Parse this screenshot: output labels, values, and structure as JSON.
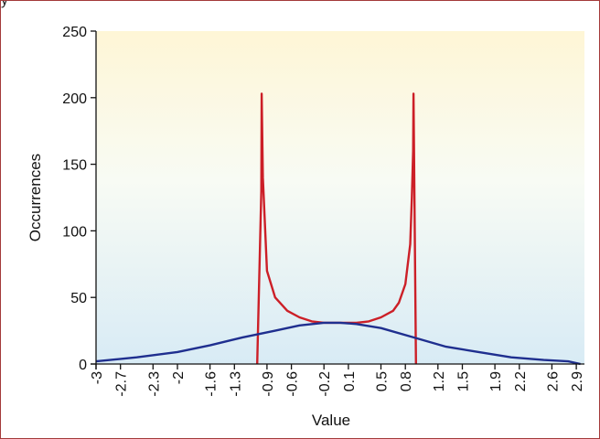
{
  "top_text": "y",
  "chart_data": {
    "type": "line",
    "xlabel": "Value",
    "ylabel": "Occurrences",
    "ylim": [
      0,
      250
    ],
    "yticks": [
      0,
      50,
      100,
      150,
      200,
      250
    ],
    "xlim": [
      -3,
      3
    ],
    "xticks": [
      "-3",
      "-2.7",
      "-2.3",
      "-2",
      "-1.6",
      "-1.3",
      "-0.9",
      "-0.6",
      "-0.2",
      "0.1",
      "0.5",
      "0.8",
      "1.2",
      "1.5",
      "1.9",
      "2.2",
      "2.6",
      "2.9"
    ],
    "grid": false,
    "series": [
      {
        "color": "#cc1f27",
        "x": [
          -1.02,
          -0.97,
          -0.965,
          -0.95,
          -0.9,
          -0.8,
          -0.65,
          -0.5,
          -0.35,
          -0.2,
          0.0,
          0.2,
          0.35,
          0.5,
          0.65,
          0.72,
          0.8,
          0.86,
          0.88,
          0.895,
          0.9,
          0.93
        ],
        "y": [
          0,
          130,
          203,
          140,
          70,
          50,
          40,
          35,
          32,
          31,
          31,
          31,
          32,
          35,
          40,
          46,
          60,
          90,
          125,
          160,
          203,
          0
        ]
      },
      {
        "color": "#1f2f8f",
        "x": [
          -3,
          -2.5,
          -2.0,
          -1.6,
          -1.2,
          -0.8,
          -0.5,
          -0.2,
          0.0,
          0.2,
          0.5,
          0.9,
          1.3,
          1.7,
          2.1,
          2.5,
          2.8,
          2.95
        ],
        "y": [
          2,
          5,
          9,
          14,
          20,
          25,
          29,
          31,
          31,
          30,
          27,
          20,
          13,
          9,
          5,
          3,
          2,
          0
        ]
      }
    ]
  },
  "colors": {
    "plot_top": "#fef6d6",
    "plot_mid": "#f8fbf4",
    "plot_bottom": "#d8ebf5",
    "axis": "#111111",
    "frame": "#a43a3a"
  }
}
